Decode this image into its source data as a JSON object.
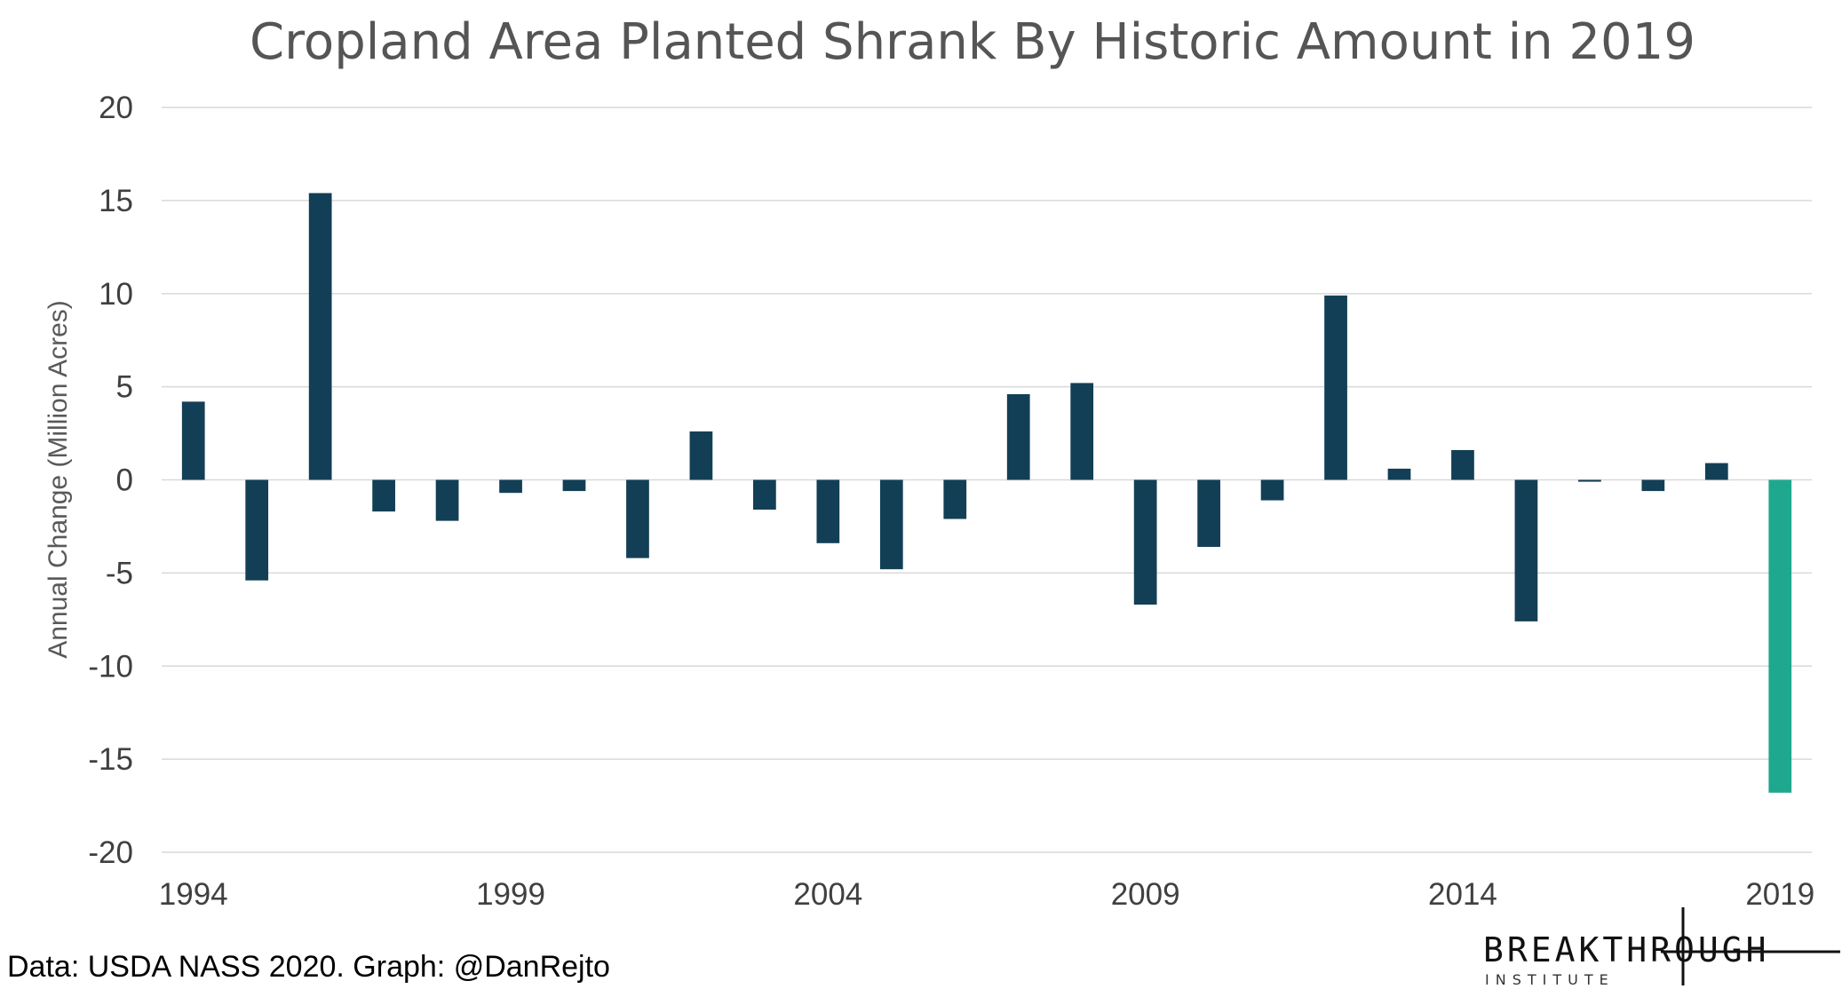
{
  "source_note": "Data: USDA NASS 2020. Graph: @DanRejto",
  "logo": {
    "name": "BREAKTHROUGH",
    "subtitle": "INSTITUTE"
  },
  "colors": {
    "bar": "#123f56",
    "highlight": "#1ea88e",
    "grid": "#d9d9d9",
    "title": "#555555",
    "tick": "#404040"
  },
  "chart_data": {
    "type": "bar",
    "title": "Cropland Area Planted Shrank By Historic Amount in 2019",
    "xlabel": "",
    "ylabel": "Annual Change (Million Acres)",
    "ylim": [
      -20,
      20
    ],
    "yticks": [
      20,
      15,
      10,
      5,
      0,
      -5,
      -10,
      -15,
      -20
    ],
    "xtick_labels": [
      "1994",
      "1999",
      "2004",
      "2009",
      "2014",
      "2019"
    ],
    "grid": true,
    "legend": "none",
    "highlight_category": "2019",
    "categories": [
      "1994",
      "1995",
      "1996",
      "1997",
      "1998",
      "1999",
      "2000",
      "2001",
      "2002",
      "2003",
      "2004",
      "2005",
      "2006",
      "2007",
      "2008",
      "2009",
      "2010",
      "2011",
      "2012",
      "2013",
      "2014",
      "2015",
      "2016",
      "2017",
      "2018",
      "2019"
    ],
    "values": [
      4.2,
      -5.4,
      15.4,
      -1.7,
      -2.2,
      -0.7,
      -0.6,
      -4.2,
      2.6,
      -1.6,
      -3.4,
      -4.8,
      -2.1,
      4.6,
      5.2,
      -6.7,
      -3.6,
      -1.1,
      9.9,
      0.6,
      1.6,
      -7.6,
      -0.1,
      -0.6,
      0.9,
      -16.8
    ]
  }
}
